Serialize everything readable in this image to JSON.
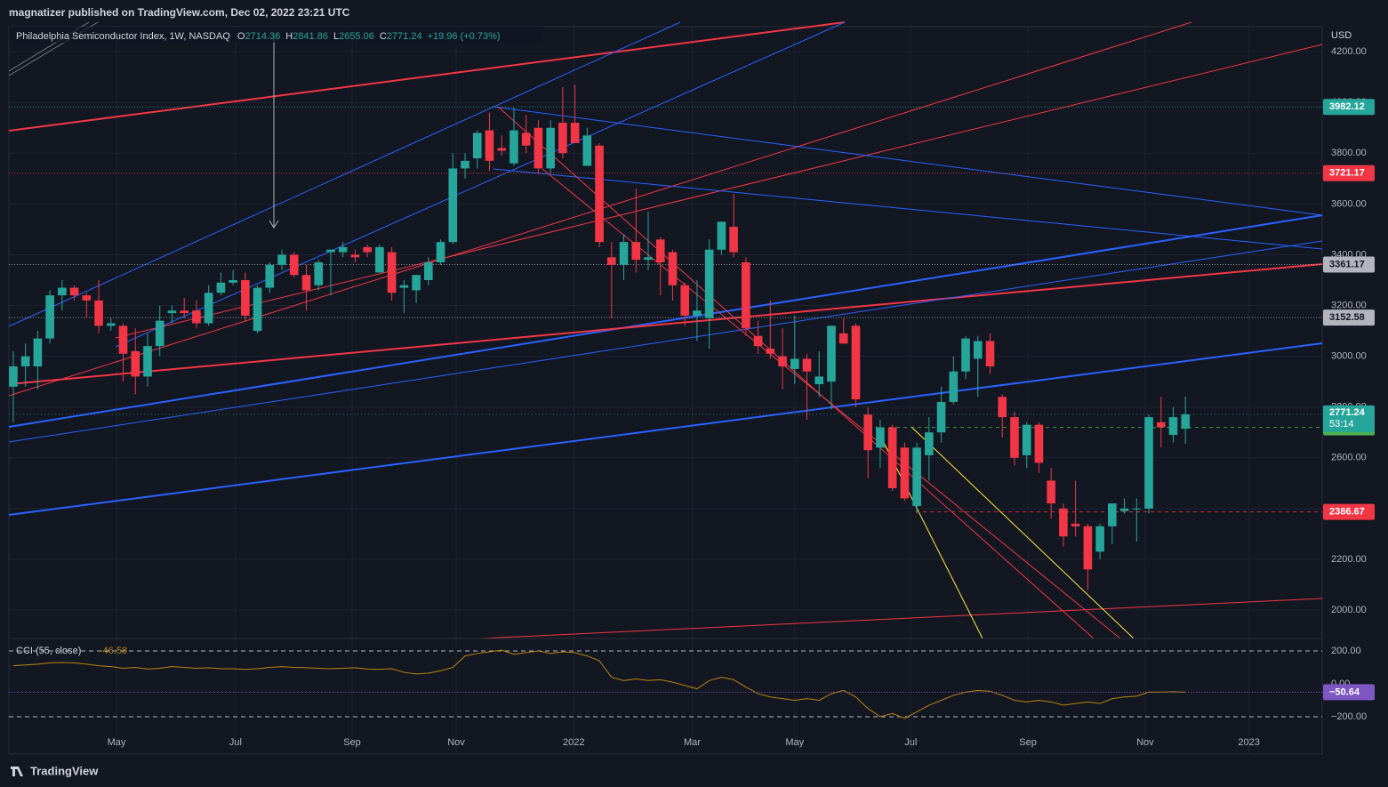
{
  "header": {
    "publisher": "magnatizer published on TradingView.com, Dec 02, 2022 23:21 UTC"
  },
  "footer": {
    "brand": "TradingView"
  },
  "chart_data": {
    "type": "candlestick",
    "legend": {
      "name": "Philadelphia Semiconductor Index, 1W, NASDAQ",
      "letters": [
        "O",
        "H",
        "L",
        "C"
      ],
      "change": "+19.96 (+0.73%)"
    },
    "currency": "USD",
    "up_color": "#26a69a",
    "down_color": "#f23645",
    "xlim": [
      -0.36,
      107.2
    ],
    "ylim": [
      1888,
      4316
    ],
    "yticks": [
      {
        "value": 2000,
        "label": "2000.00"
      },
      {
        "value": 2200,
        "label": "2200.00"
      },
      {
        "value": 2400,
        "label": "2400.00"
      },
      {
        "value": 2600,
        "label": "2600.00"
      },
      {
        "value": 2800,
        "label": "2800.00"
      },
      {
        "value": 3000,
        "label": "3000.00"
      },
      {
        "value": 3200,
        "label": "3200.00"
      },
      {
        "value": 3400,
        "label": "3400.00"
      },
      {
        "value": 3600,
        "label": "3600.00"
      },
      {
        "value": 3800,
        "label": "3800.00"
      },
      {
        "value": 4000,
        "label": "4000.00"
      },
      {
        "value": 4200,
        "label": "4200.00"
      }
    ],
    "xticks": [
      {
        "value": 8.45,
        "label": "May"
      },
      {
        "value": 18.2,
        "label": "Jul"
      },
      {
        "value": 27.75,
        "label": "Sep"
      },
      {
        "value": 36.27,
        "label": "Nov"
      },
      {
        "value": 45.9,
        "label": "2022"
      },
      {
        "value": 55.6,
        "label": "Mar"
      },
      {
        "value": 64.0,
        "label": "May"
      },
      {
        "value": 73.5,
        "label": "Jul"
      },
      {
        "value": 83.1,
        "label": "Sep"
      },
      {
        "value": 92.7,
        "label": "Nov"
      },
      {
        "value": 101.2,
        "label": "2023"
      }
    ],
    "grid": true,
    "open": [
      2880,
      2960,
      2960,
      3070,
      3240,
      3270,
      3240,
      3220,
      3120,
      3120,
      3020,
      2920,
      3040,
      3170,
      3180,
      3180,
      3130,
      3250,
      3290,
      3300,
      3100,
      3270,
      3360,
      3400,
      3320,
      3280,
      3410,
      3410,
      3400,
      3430,
      3330,
      3410,
      3270,
      3260,
      3300,
      3370,
      3450,
      3740,
      3780,
      3890,
      3820,
      3760,
      3880,
      3900,
      3740,
      3920,
      3920,
      3750,
      3830,
      3390,
      3360,
      3450,
      3380,
      3460,
      3410,
      3280,
      3160,
      3150,
      3420,
      3510,
      3370,
      3080,
      3030,
      3000,
      2950,
      2990,
      2890,
      2900,
      3090,
      3120,
      2770,
      2640,
      2720,
      2640,
      2410,
      2610,
      2700,
      2820,
      2940,
      2990,
      3060,
      2840,
      2760,
      2610,
      2730,
      2510,
      2400,
      2340,
      2330,
      2230,
      2330,
      2390,
      2400,
      2400,
      2740,
      2690,
      2714.36
    ],
    "high": [
      3020,
      3050,
      3100,
      3260,
      3300,
      3280,
      3250,
      3300,
      3150,
      3130,
      3110,
      3090,
      3200,
      3200,
      3230,
      3220,
      3280,
      3330,
      3340,
      3330,
      3280,
      3370,
      3420,
      3410,
      3360,
      3380,
      3420,
      3450,
      3420,
      3440,
      3440,
      3430,
      3300,
      3320,
      3390,
      3460,
      3800,
      3800,
      3890,
      3960,
      3870,
      3980,
      3950,
      3930,
      3930,
      4060,
      4070,
      3900,
      3840,
      3450,
      3480,
      3660,
      3570,
      3470,
      3420,
      3290,
      3300,
      3460,
      3530,
      3640,
      3390,
      3140,
      3220,
      3110,
      3160,
      3010,
      3020,
      3120,
      3150,
      3130,
      2800,
      2750,
      2730,
      2660,
      2660,
      2760,
      2880,
      3000,
      3080,
      3080,
      3090,
      2850,
      2780,
      2740,
      2740,
      2560,
      2420,
      2510,
      2340,
      2340,
      2420,
      2440,
      2440,
      2770,
      2840,
      2800,
      2841.86
    ],
    "low": [
      2740,
      2880,
      2870,
      3050,
      3180,
      3220,
      3150,
      3090,
      3100,
      2900,
      2850,
      2880,
      3000,
      3130,
      3150,
      3110,
      3120,
      3240,
      3280,
      3140,
      3090,
      3250,
      3340,
      3310,
      3180,
      3260,
      3240,
      3390,
      3370,
      3390,
      3330,
      3220,
      3170,
      3210,
      3280,
      3360,
      3440,
      3700,
      3740,
      3730,
      3790,
      3750,
      3800,
      3720,
      3720,
      3780,
      3840,
      3750,
      3430,
      3150,
      3300,
      3330,
      3340,
      3240,
      3220,
      3120,
      3060,
      3030,
      3400,
      3390,
      3080,
      3010,
      2990,
      2870,
      2890,
      2750,
      2840,
      2790,
      3050,
      2800,
      2520,
      2560,
      2470,
      2430,
      2380,
      2510,
      2660,
      2810,
      2910,
      2840,
      2930,
      2680,
      2570,
      2560,
      2540,
      2360,
      2250,
      2290,
      2080,
      2200,
      2260,
      2380,
      2270,
      2380,
      2640,
      2660,
      2655.06
    ],
    "close": [
      2960,
      3000,
      3070,
      3240,
      3270,
      3240,
      3220,
      3120,
      3130,
      3010,
      2920,
      3040,
      3140,
      3180,
      3170,
      3130,
      3250,
      3290,
      3300,
      3160,
      3270,
      3360,
      3400,
      3320,
      3260,
      3370,
      3420,
      3430,
      3390,
      3410,
      3430,
      3250,
      3280,
      3320,
      3370,
      3450,
      3740,
      3770,
      3880,
      3770,
      3810,
      3890,
      3830,
      3740,
      3900,
      3800,
      3840,
      3870,
      3450,
      3360,
      3450,
      3380,
      3390,
      3370,
      3280,
      3160,
      3180,
      3420,
      3530,
      3410,
      3110,
      3040,
      3010,
      2960,
      2990,
      2940,
      2920,
      3120,
      3050,
      2830,
      2630,
      2720,
      2480,
      2440,
      2640,
      2700,
      2820,
      2940,
      3070,
      3060,
      2960,
      2760,
      2600,
      2730,
      2580,
      2420,
      2290,
      2330,
      2160,
      2330,
      2420,
      2400,
      2400,
      2760,
      2720,
      2760,
      2771.24
    ],
    "countdown": "53:14",
    "levels": [
      {
        "value": 3982.12,
        "color": "#26a69a",
        "text_color": "#ffffff"
      },
      {
        "value": 3721.17,
        "color": "#f23645",
        "text_color": "#ffffff"
      },
      {
        "value": 3361.17,
        "color": "#b2b5be",
        "text_color": "#131722"
      },
      {
        "value": 3152.58,
        "color": "#b2b5be",
        "text_color": "#131722"
      },
      {
        "value": 2719.53,
        "color": "#4caf50",
        "text_color": "#131722"
      },
      {
        "value": 2386.67,
        "color": "#f23645",
        "text_color": "#ffffff"
      }
    ],
    "cci": {
      "name": "CCI (55, close)",
      "header_value": -46.58,
      "color": "#b8860b",
      "ylim": [
        -276,
        276
      ],
      "yticks": [
        {
          "value": 200,
          "label": "200.00"
        },
        {
          "value": 0,
          "label": "0.00"
        },
        {
          "value": -200,
          "label": "−200.00"
        }
      ],
      "current": {
        "value": -50.64,
        "label": "−50.64",
        "color": "#7e57c2"
      },
      "values": [
        110,
        115,
        120,
        128,
        130,
        128,
        120,
        110,
        105,
        95,
        100,
        90,
        95,
        105,
        100,
        95,
        98,
        92,
        92,
        88,
        92,
        100,
        105,
        100,
        98,
        95,
        92,
        95,
        98,
        90,
        88,
        92,
        70,
        60,
        65,
        80,
        100,
        170,
        185,
        195,
        205,
        180,
        190,
        200,
        185,
        195,
        190,
        170,
        140,
        40,
        20,
        30,
        20,
        25,
        10,
        -10,
        -30,
        20,
        40,
        25,
        -20,
        -60,
        -80,
        -90,
        -100,
        -90,
        -100,
        -60,
        -40,
        -80,
        -150,
        -200,
        -180,
        -210,
        -170,
        -130,
        -100,
        -70,
        -50,
        -40,
        -45,
        -70,
        -100,
        -110,
        -100,
        -110,
        -130,
        -120,
        -110,
        -120,
        -90,
        -80,
        -75,
        -50,
        -50,
        -48,
        -50.64
      ]
    }
  }
}
